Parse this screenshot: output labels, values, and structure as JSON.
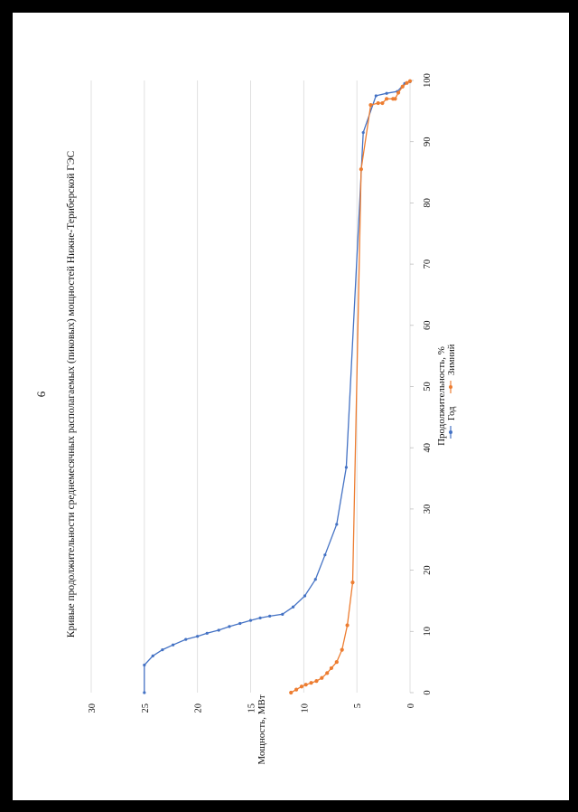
{
  "page": {
    "number": "6"
  },
  "chart_data": {
    "type": "line",
    "title": "Кривые продолжительности среднемесячных располагаемых (пиковых) мощностей Нижне-Териберской ГЭС",
    "xlabel": "Продолжительность, %",
    "ylabel": "Мощность, МВт",
    "xlim": [
      0,
      100
    ],
    "ylim": [
      0,
      30
    ],
    "x_ticks": [
      0,
      10,
      20,
      30,
      40,
      50,
      60,
      70,
      80,
      90,
      100
    ],
    "y_ticks": [
      0,
      5,
      10,
      15,
      20,
      25,
      30
    ],
    "grid": true,
    "orientation": "page rotated 90° counter-clockwise",
    "legend_position": "bottom",
    "series": [
      {
        "name": "Год",
        "color": "#4472C4",
        "points": [
          [
            0,
            25.0
          ],
          [
            4.5,
            25.0
          ],
          [
            6.0,
            24.2
          ],
          [
            7.0,
            23.3
          ],
          [
            7.8,
            22.3
          ],
          [
            8.7,
            21.1
          ],
          [
            9.2,
            20.0
          ],
          [
            9.7,
            19.1
          ],
          [
            10.2,
            18.0
          ],
          [
            10.8,
            17.0
          ],
          [
            11.3,
            16.0
          ],
          [
            11.8,
            15.0
          ],
          [
            12.2,
            14.1
          ],
          [
            12.5,
            13.2
          ],
          [
            12.8,
            12.0
          ],
          [
            14.0,
            11.0
          ],
          [
            15.8,
            9.9
          ],
          [
            18.5,
            8.9
          ],
          [
            22.5,
            8.0
          ],
          [
            27.5,
            6.9
          ],
          [
            36.8,
            6.0
          ],
          [
            91.5,
            4.4
          ],
          [
            97.5,
            3.2
          ],
          [
            97.9,
            2.2
          ],
          [
            98.2,
            1.2
          ],
          [
            99.5,
            0.5
          ],
          [
            99.8,
            0.0
          ]
        ]
      },
      {
        "name": "Зимний",
        "color": "#ED7D31",
        "points": [
          [
            0,
            11.2
          ],
          [
            0.5,
            10.7
          ],
          [
            1.0,
            10.2
          ],
          [
            1.3,
            9.8
          ],
          [
            1.6,
            9.3
          ],
          [
            1.9,
            8.8
          ],
          [
            2.4,
            8.3
          ],
          [
            3.2,
            7.8
          ],
          [
            4.0,
            7.4
          ],
          [
            5.0,
            6.9
          ],
          [
            7.0,
            6.4
          ],
          [
            11.0,
            5.9
          ],
          [
            18.0,
            5.4
          ],
          [
            85.5,
            4.6
          ],
          [
            96.0,
            3.7
          ],
          [
            96.3,
            3.0
          ],
          [
            96.3,
            2.6
          ],
          [
            97.0,
            2.2
          ],
          [
            97.0,
            1.6
          ],
          [
            97.0,
            1.4
          ],
          [
            98.0,
            1.1
          ],
          [
            99.0,
            0.7
          ],
          [
            99.6,
            0.3
          ],
          [
            99.9,
            0.0
          ]
        ]
      }
    ]
  }
}
